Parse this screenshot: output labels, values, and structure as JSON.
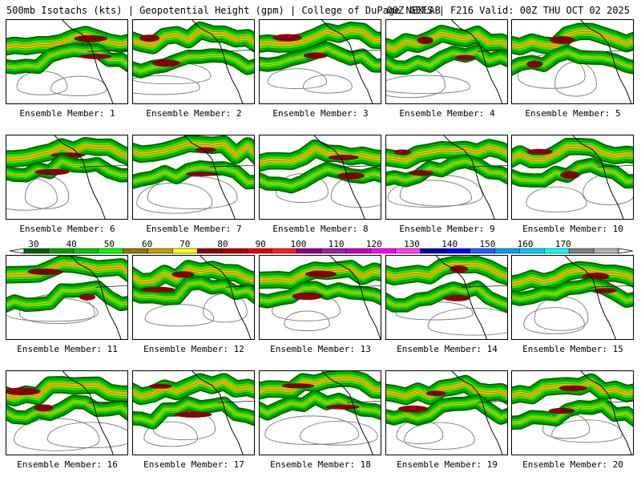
{
  "header": {
    "left_title": "500mb Isotachs (kts) | Geopotential Height (gpm) | College of DuPage NEXLAB",
    "right_title": "00Z GEFS | F216 Valid: 00Z THU OCT 02 2025"
  },
  "panels": [
    {
      "caption": "Ensemble Member: 1"
    },
    {
      "caption": "Ensemble Member: 2"
    },
    {
      "caption": "Ensemble Member: 3"
    },
    {
      "caption": "Ensemble Member: 4"
    },
    {
      "caption": "Ensemble Member: 5"
    },
    {
      "caption": "Ensemble Member: 6"
    },
    {
      "caption": "Ensemble Member: 7"
    },
    {
      "caption": "Ensemble Member: 8"
    },
    {
      "caption": "Ensemble Member: 9"
    },
    {
      "caption": "Ensemble Member: 10"
    },
    {
      "caption": "Ensemble Member: 11"
    },
    {
      "caption": "Ensemble Member: 12"
    },
    {
      "caption": "Ensemble Member: 13"
    },
    {
      "caption": "Ensemble Member: 14"
    },
    {
      "caption": "Ensemble Member: 15"
    },
    {
      "caption": "Ensemble Member: 16"
    },
    {
      "caption": "Ensemble Member: 17"
    },
    {
      "caption": "Ensemble Member: 18"
    },
    {
      "caption": "Ensemble Member: 19"
    },
    {
      "caption": "Ensemble Member: 20"
    }
  ],
  "color_scale": {
    "labels": [
      "30",
      "40",
      "50",
      "60",
      "70",
      "80",
      "90",
      "100",
      "110",
      "120",
      "130",
      "140",
      "150",
      "160",
      "170"
    ],
    "colors": [
      "#006400",
      "#00a000",
      "#00c800",
      "#00ff00",
      "#8b7d00",
      "#c8a000",
      "#ffff00",
      "#8b0000",
      "#b00000",
      "#e00000",
      "#ff2020",
      "#8b008b",
      "#a020a0",
      "#c000c0",
      "#ff00ff",
      "#ff40ff",
      "#0000a0",
      "#0000ff",
      "#2060ff",
      "#00a0ff",
      "#00c8ff",
      "#00ffff",
      "#808080",
      "#b0b0b0"
    ]
  },
  "colors": {
    "jet_light": "#00b000",
    "jet_mid": "#00ff00",
    "jet_dark": "#006400",
    "jet_core": "#8b0000",
    "jet_yellow": "#e0c000",
    "contour": "#808080",
    "coast": "#000000"
  }
}
